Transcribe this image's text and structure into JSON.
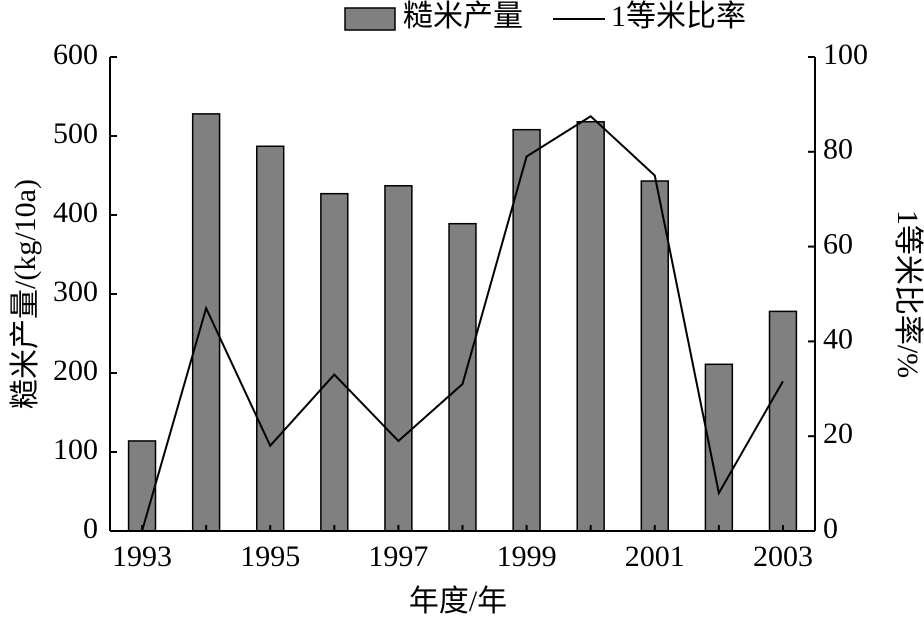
{
  "chart_data": {
    "type": "bar",
    "x_label": "年度/年",
    "y_label": "糙米产量/(kg/10a)",
    "y2_label": "1等米比率/%",
    "categories": [
      "1993",
      null,
      "1995",
      null,
      "1997",
      null,
      "1999",
      null,
      "2001",
      null,
      "2003"
    ],
    "series": [
      {
        "name": "糙米产量",
        "type": "bar",
        "color": "#808080",
        "values": [
          114,
          528,
          487,
          427,
          437,
          389,
          508,
          518,
          443,
          211,
          278
        ]
      },
      {
        "name": "1等米比率",
        "type": "line",
        "color": "#000000",
        "axis": "y2",
        "values": [
          0,
          47,
          18,
          33,
          19,
          31,
          79,
          87.5,
          75,
          8,
          31.6
        ]
      }
    ],
    "ylim": [
      0,
      600
    ],
    "yticks": [
      0,
      100,
      200,
      300,
      400,
      500,
      600
    ],
    "y2lim": [
      0,
      100
    ],
    "y2ticks": [
      0,
      20,
      40,
      60,
      80,
      100
    ],
    "legend": "top"
  }
}
